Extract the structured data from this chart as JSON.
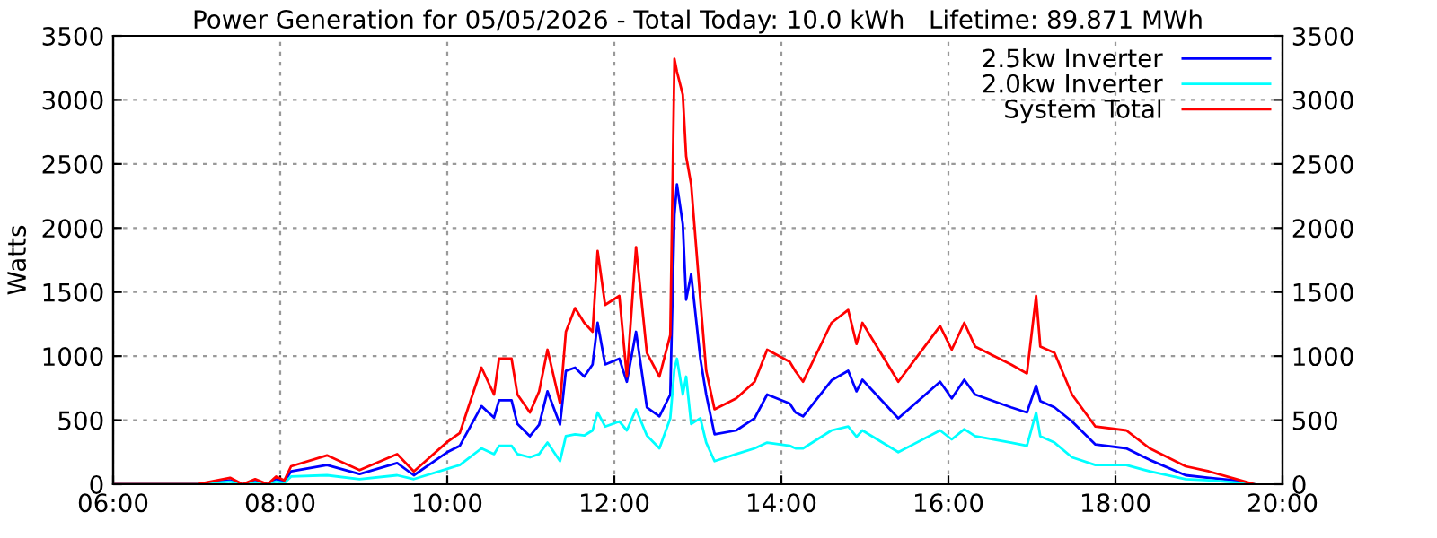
{
  "chart_data": {
    "type": "line",
    "title": "Power Generation for 05/05/2026 - Total Today: 10.0 kWh   Lifetime: 89.871 MWh",
    "ylabel": "Watts",
    "x": [
      6.0,
      7.0,
      7.4,
      7.55,
      7.7,
      7.85,
      7.95,
      8.05,
      8.13,
      8.56,
      8.95,
      9.4,
      9.6,
      10.0,
      10.15,
      10.41,
      10.56,
      10.62,
      10.77,
      10.84,
      10.99,
      11.1,
      11.2,
      11.35,
      11.42,
      11.53,
      11.64,
      11.74,
      11.8,
      11.89,
      12.06,
      12.15,
      12.26,
      12.39,
      12.54,
      12.67,
      12.72,
      12.75,
      12.82,
      12.86,
      12.92,
      13.03,
      13.1,
      13.2,
      13.46,
      13.68,
      13.83,
      14.1,
      14.17,
      14.26,
      14.6,
      14.8,
      14.9,
      14.97,
      15.4,
      15.9,
      16.04,
      16.19,
      16.32,
      16.75,
      16.94,
      17.05,
      17.1,
      17.27,
      17.48,
      17.76,
      18.13,
      18.41,
      18.84,
      19.12,
      19.42,
      19.66
    ],
    "series": [
      {
        "name": "2.5kw Inverter",
        "color": "#0000ff",
        "values": [
          0,
          0,
          30,
          0,
          25,
          0,
          40,
          20,
          100,
          150,
          80,
          165,
          70,
          250,
          300,
          610,
          520,
          655,
          655,
          470,
          375,
          465,
          725,
          465,
          885,
          910,
          840,
          935,
          1260,
          935,
          980,
          800,
          1190,
          600,
          530,
          700,
          2100,
          2340,
          2030,
          1440,
          1640,
          980,
          700,
          390,
          420,
          515,
          700,
          630,
          560,
          530,
          810,
          885,
          725,
          815,
          515,
          800,
          670,
          815,
          700,
          600,
          560,
          770,
          650,
          600,
          490,
          310,
          280,
          190,
          70,
          50,
          30,
          0
        ]
      },
      {
        "name": "2.0kw Inverter",
        "color": "#00ffff",
        "values": [
          0,
          0,
          20,
          0,
          15,
          0,
          20,
          10,
          60,
          70,
          40,
          70,
          40,
          120,
          150,
          280,
          235,
          300,
          300,
          235,
          210,
          235,
          325,
          180,
          375,
          390,
          380,
          420,
          560,
          450,
          490,
          420,
          585,
          380,
          280,
          515,
          900,
          980,
          700,
          840,
          470,
          515,
          325,
          180,
          235,
          280,
          325,
          300,
          280,
          280,
          420,
          450,
          370,
          420,
          250,
          420,
          350,
          430,
          375,
          325,
          300,
          560,
          375,
          325,
          210,
          150,
          150,
          100,
          40,
          30,
          15,
          0
        ]
      },
      {
        "name": "System Total",
        "color": "#ff0000",
        "values": [
          0,
          0,
          50,
          0,
          40,
          0,
          60,
          30,
          140,
          225,
          110,
          235,
          100,
          330,
          400,
          910,
          700,
          980,
          980,
          700,
          560,
          725,
          1050,
          630,
          1190,
          1375,
          1260,
          1190,
          1820,
          1400,
          1470,
          840,
          1850,
          1025,
          840,
          1165,
          3320,
          3220,
          3040,
          2560,
          2340,
          1440,
          885,
          585,
          670,
          800,
          1050,
          955,
          880,
          800,
          1260,
          1360,
          1095,
          1260,
          800,
          1235,
          1050,
          1260,
          1075,
          935,
          865,
          1470,
          1075,
          1025,
          700,
          450,
          420,
          280,
          140,
          100,
          45,
          0
        ]
      }
    ],
    "xlim": [
      6,
      20
    ],
    "xticks": [
      {
        "value": 6,
        "label": "06:00"
      },
      {
        "value": 8,
        "label": "08:00"
      },
      {
        "value": 10,
        "label": "10:00"
      },
      {
        "value": 12,
        "label": "12:00"
      },
      {
        "value": 14,
        "label": "14:00"
      },
      {
        "value": 16,
        "label": "16:00"
      },
      {
        "value": 18,
        "label": "18:00"
      },
      {
        "value": 20,
        "label": "20:00"
      }
    ],
    "ylim": [
      0,
      3500
    ],
    "yticks": [
      0,
      500,
      1000,
      1500,
      2000,
      2500,
      3000,
      3500
    ],
    "y2lim": [
      0,
      3500
    ],
    "y2ticks": [
      0,
      500,
      1000,
      1500,
      2000,
      2500,
      3000,
      3500
    ],
    "grid": true,
    "legend": "top right",
    "line_style": "solid",
    "marker": "none"
  }
}
